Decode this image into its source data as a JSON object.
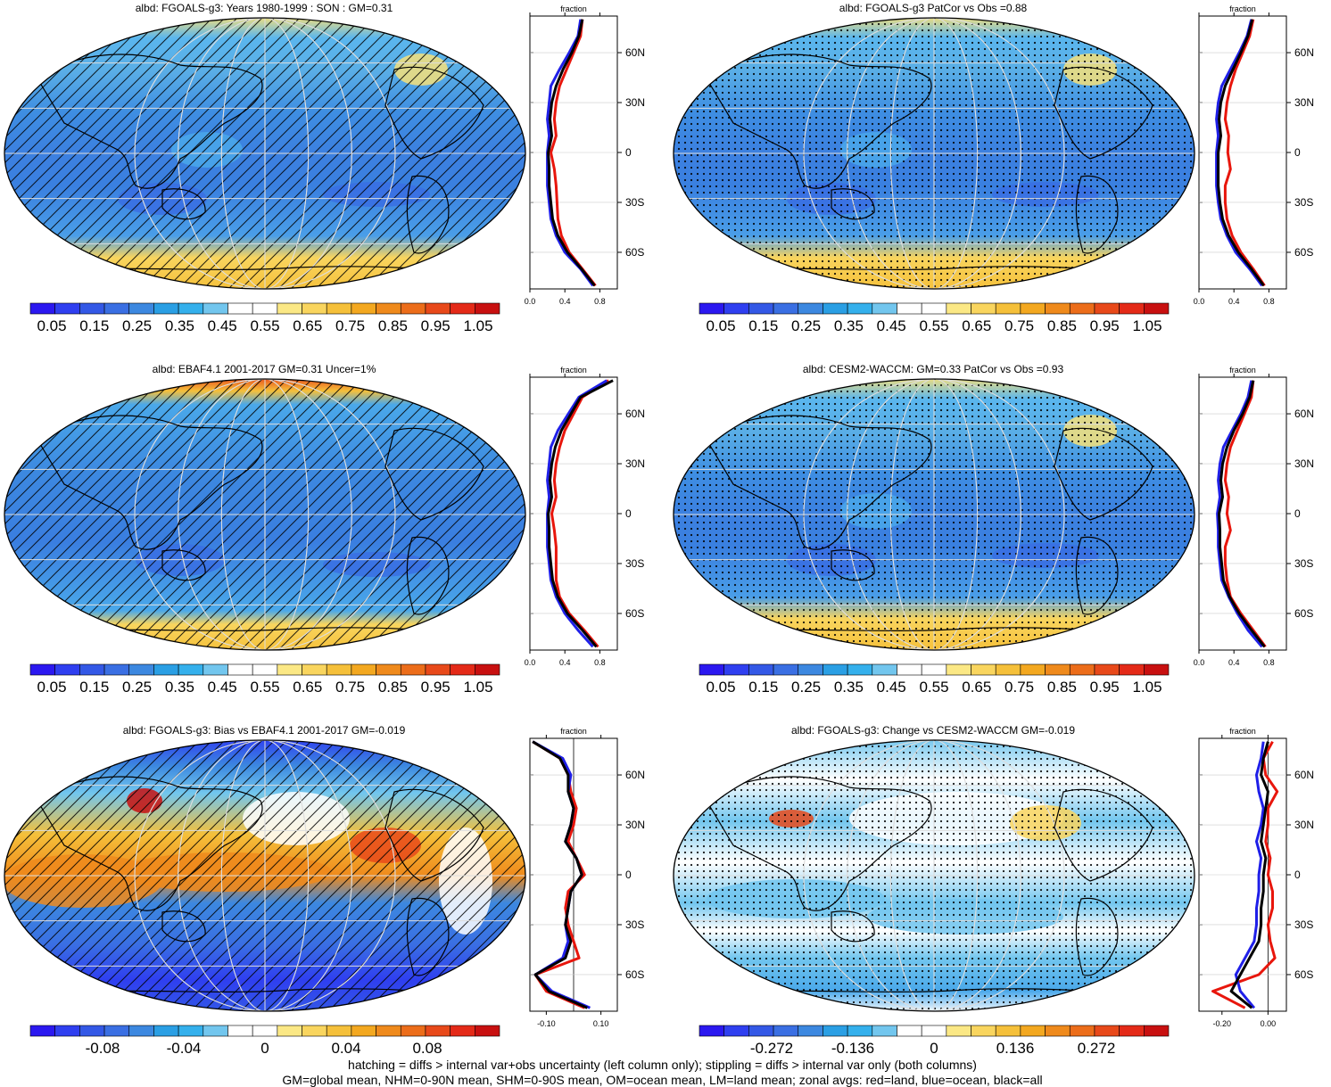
{
  "panels": [
    {
      "title": "albd: FGOALS-g3: Years 1980-1999 : SON : GM=0.31",
      "overlay": "hatch",
      "base": "clim",
      "colorbar": [
        "0.05",
        "0.15",
        "0.25",
        "0.35",
        "0.45",
        "0.55",
        "0.65",
        "0.75",
        "0.85",
        "0.95",
        "1.05"
      ]
    },
    {
      "title": "albd: FGOALS-g3 PatCor vs Obs =0.88",
      "overlay": "stipple",
      "base": "clim",
      "colorbar": [
        "0.05",
        "0.15",
        "0.25",
        "0.35",
        "0.45",
        "0.55",
        "0.65",
        "0.75",
        "0.85",
        "0.95",
        "1.05"
      ]
    },
    {
      "title": "albd: EBAF4.1 2001-2017 GM=0.31 Uncer=1%",
      "overlay": "hatch",
      "base": "obs",
      "colorbar": [
        "0.05",
        "0.15",
        "0.25",
        "0.35",
        "0.45",
        "0.55",
        "0.65",
        "0.75",
        "0.85",
        "0.95",
        "1.05"
      ]
    },
    {
      "title": "albd: CESM2-WACCM: GM=0.33 PatCor vs Obs =0.93",
      "overlay": "stipple",
      "base": "clim",
      "colorbar": [
        "0.05",
        "0.15",
        "0.25",
        "0.35",
        "0.45",
        "0.55",
        "0.65",
        "0.75",
        "0.85",
        "0.95",
        "1.05"
      ]
    },
    {
      "title": "albd: FGOALS-g3: Bias vs EBAF4.1 2001-2017  GM=-0.019",
      "overlay": "hatch",
      "base": "bias",
      "colorbar": [
        "-0.08",
        "-0.04",
        "0",
        "0.04",
        "0.08"
      ]
    },
    {
      "title": "albd: FGOALS-g3: Change vs CESM2-WACCM GM=-0.019",
      "overlay": "stipple",
      "base": "change",
      "colorbar": [
        "-0.272",
        "-0.136",
        "0",
        "0.136",
        "0.272"
      ]
    }
  ],
  "caption": {
    "line1": "hatching = diffs > internal var+obs uncertainty (left column only); stippling = diffs > internal var only (both columns)",
    "line2": "GM=global mean, NHM=0-90N mean, SHM=0-90S mean, OM=ocean mean, LM=land mean; zonal avgs: red=land, blue=ocean, black=all"
  },
  "colors": {
    "land": "#e8160c",
    "ocean": "#1f1fe8",
    "all": "#000000"
  },
  "palette": [
    "#2b18f0",
    "#2f3ff0",
    "#3358e6",
    "#3a6fe3",
    "#3c88e0",
    "#2a9fe4",
    "#34b0ec",
    "#72c6ee",
    "#ffffff",
    "#ffffff",
    "#fbe885",
    "#f9d55e",
    "#f5c03a",
    "#f3a820",
    "#ef8a1c",
    "#ec6d1a",
    "#e8491a",
    "#e42a18",
    "#c81010"
  ],
  "chart_data": [
    {
      "type": "heatmap",
      "title": "albd: FGOALS-g3: Years 1980-1999 : SON : GM=0.31",
      "colorbar_ticks": [
        0.05,
        0.15,
        0.25,
        0.35,
        0.45,
        0.55,
        0.65,
        0.75,
        0.85,
        0.95,
        1.05
      ],
      "zonal": {
        "xlabel": "fraction",
        "xticks": [
          "0.0",
          "0.4",
          "0.8"
        ],
        "xlim": [
          0,
          1
        ],
        "yticks": [
          "60N",
          "30N",
          "0",
          "30S",
          "60S"
        ],
        "lat": [
          80,
          70,
          60,
          50,
          40,
          30,
          20,
          10,
          0,
          -10,
          -20,
          -30,
          -40,
          -50,
          -60,
          -70,
          -80
        ],
        "series": [
          {
            "name": "land",
            "values": [
              0.6,
              0.58,
              0.5,
              0.42,
              0.34,
              0.3,
              0.28,
              0.3,
              0.24,
              0.28,
              0.3,
              0.31,
              0.32,
              0.36,
              0.45,
              0.6,
              0.75
            ]
          },
          {
            "name": "ocean",
            "values": [
              0.58,
              0.55,
              0.45,
              0.34,
              0.24,
              0.22,
              0.2,
              0.22,
              0.2,
              0.2,
              0.2,
              0.22,
              0.24,
              0.3,
              0.4,
              0.58,
              0.72
            ]
          },
          {
            "name": "all",
            "values": [
              0.6,
              0.56,
              0.48,
              0.38,
              0.3,
              0.25,
              0.23,
              0.25,
              0.21,
              0.22,
              0.22,
              0.24,
              0.26,
              0.32,
              0.43,
              0.59,
              0.74
            ]
          }
        ]
      }
    },
    {
      "type": "heatmap",
      "title": "albd: FGOALS-g3 PatCor vs Obs =0.88",
      "colorbar_ticks": [
        0.05,
        0.15,
        0.25,
        0.35,
        0.45,
        0.55,
        0.65,
        0.75,
        0.85,
        0.95,
        1.05
      ],
      "zonal": {
        "xlabel": "fraction",
        "xticks": [
          "0.0",
          "0.4",
          "0.8"
        ],
        "xlim": [
          0,
          1
        ],
        "yticks": [
          "60N",
          "30N",
          "0",
          "30S",
          "60S"
        ],
        "lat": [
          80,
          70,
          60,
          50,
          40,
          30,
          20,
          10,
          0,
          -10,
          -20,
          -30,
          -40,
          -50,
          -60,
          -70,
          -80
        ],
        "series": [
          {
            "name": "land",
            "values": [
              0.62,
              0.58,
              0.5,
              0.42,
              0.36,
              0.32,
              0.3,
              0.34,
              0.33,
              0.36,
              0.3,
              0.3,
              0.32,
              0.38,
              0.48,
              0.62,
              0.75
            ]
          },
          {
            "name": "ocean",
            "values": [
              0.6,
              0.55,
              0.46,
              0.36,
              0.26,
              0.22,
              0.2,
              0.22,
              0.2,
              0.2,
              0.2,
              0.22,
              0.25,
              0.32,
              0.42,
              0.58,
              0.72
            ]
          },
          {
            "name": "all",
            "values": [
              0.61,
              0.56,
              0.48,
              0.39,
              0.3,
              0.25,
              0.23,
              0.25,
              0.22,
              0.22,
              0.22,
              0.24,
              0.27,
              0.34,
              0.45,
              0.6,
              0.74
            ]
          }
        ]
      }
    },
    {
      "type": "heatmap",
      "title": "albd: EBAF4.1 2001-2017 GM=0.31 Uncer=1%",
      "colorbar_ticks": [
        0.05,
        0.15,
        0.25,
        0.35,
        0.45,
        0.55,
        0.65,
        0.75,
        0.85,
        0.95,
        1.05
      ],
      "zonal": {
        "xlabel": "fraction",
        "xticks": [
          "0.0",
          "0.4",
          "0.8"
        ],
        "xlim": [
          0,
          1
        ],
        "yticks": [
          "60N",
          "30N",
          "0",
          "30S",
          "60S"
        ],
        "lat": [
          80,
          70,
          60,
          50,
          40,
          30,
          20,
          10,
          0,
          -10,
          -20,
          -30,
          -40,
          -50,
          -60,
          -70,
          -80
        ],
        "series": [
          {
            "name": "land",
            "values": [
              0.9,
              0.6,
              0.5,
              0.4,
              0.34,
              0.3,
              0.28,
              0.3,
              0.25,
              0.28,
              0.3,
              0.3,
              0.3,
              0.34,
              0.45,
              0.62,
              0.78
            ]
          },
          {
            "name": "ocean",
            "values": [
              0.88,
              0.56,
              0.44,
              0.32,
              0.24,
              0.22,
              0.2,
              0.22,
              0.2,
              0.2,
              0.2,
              0.22,
              0.24,
              0.3,
              0.4,
              0.55,
              0.72
            ]
          },
          {
            "name": "all",
            "values": [
              0.95,
              0.58,
              0.47,
              0.36,
              0.29,
              0.25,
              0.23,
              0.25,
              0.21,
              0.22,
              0.22,
              0.24,
              0.26,
              0.32,
              0.43,
              0.6,
              0.76
            ]
          }
        ]
      }
    },
    {
      "type": "heatmap",
      "title": "albd: CESM2-WACCM: GM=0.33 PatCor vs Obs =0.93",
      "colorbar_ticks": [
        0.05,
        0.15,
        0.25,
        0.35,
        0.45,
        0.55,
        0.65,
        0.75,
        0.85,
        0.95,
        1.05
      ],
      "zonal": {
        "xlabel": "fraction",
        "xticks": [
          "0.0",
          "0.4",
          "0.8"
        ],
        "xlim": [
          0,
          1
        ],
        "yticks": [
          "60N",
          "30N",
          "0",
          "30S",
          "60S"
        ],
        "lat": [
          80,
          70,
          60,
          50,
          40,
          30,
          20,
          10,
          0,
          -10,
          -20,
          -30,
          -40,
          -50,
          -60,
          -70,
          -80
        ],
        "series": [
          {
            "name": "land",
            "values": [
              0.62,
              0.6,
              0.52,
              0.44,
              0.36,
              0.32,
              0.3,
              0.34,
              0.32,
              0.36,
              0.3,
              0.3,
              0.32,
              0.36,
              0.48,
              0.62,
              0.76
            ]
          },
          {
            "name": "ocean",
            "values": [
              0.6,
              0.56,
              0.48,
              0.38,
              0.28,
              0.24,
              0.22,
              0.24,
              0.21,
              0.22,
              0.22,
              0.24,
              0.26,
              0.34,
              0.44,
              0.56,
              0.72
            ]
          },
          {
            "name": "all",
            "values": [
              0.62,
              0.58,
              0.5,
              0.4,
              0.32,
              0.27,
              0.25,
              0.27,
              0.23,
              0.24,
              0.24,
              0.26,
              0.28,
              0.35,
              0.46,
              0.6,
              0.75
            ]
          }
        ]
      }
    },
    {
      "type": "heatmap",
      "title": "albd: FGOALS-g3: Bias vs EBAF4.1 2001-2017  GM=-0.019",
      "colorbar_ticks": [
        -0.08,
        -0.04,
        0,
        0.04,
        0.08
      ],
      "zonal": {
        "xlabel": "fraction",
        "xticks": [
          "-0.10",
          "0.10"
        ],
        "xlim": [
          -0.16,
          0.16
        ],
        "yticks": [
          "60N",
          "30N",
          "0",
          "30S",
          "60S"
        ],
        "lat": [
          80,
          70,
          60,
          50,
          40,
          30,
          20,
          10,
          0,
          -10,
          -20,
          -30,
          -40,
          -50,
          -60,
          -70,
          -80
        ],
        "series": [
          {
            "name": "land",
            "values": [
              -0.15,
              -0.05,
              -0.02,
              -0.01,
              0.01,
              0.0,
              -0.02,
              0.01,
              0.04,
              -0.02,
              -0.03,
              -0.02,
              0.0,
              0.02,
              -0.14,
              -0.1,
              0.04
            ]
          },
          {
            "name": "ocean",
            "values": [
              -0.15,
              -0.04,
              -0.01,
              -0.02,
              0.0,
              -0.01,
              -0.03,
              0.01,
              0.03,
              -0.01,
              -0.02,
              -0.03,
              -0.02,
              -0.04,
              -0.14,
              -0.08,
              0.06
            ]
          },
          {
            "name": "all",
            "values": [
              -0.15,
              -0.05,
              -0.02,
              -0.02,
              0.0,
              -0.01,
              -0.03,
              0.01,
              0.03,
              -0.01,
              -0.02,
              -0.03,
              -0.01,
              -0.03,
              -0.14,
              -0.09,
              0.05
            ]
          }
        ]
      }
    },
    {
      "type": "heatmap",
      "title": "albd: FGOALS-g3: Change vs CESM2-WACCM GM=-0.019",
      "colorbar_ticks": [
        -0.272,
        -0.136,
        0,
        0.136,
        0.272
      ],
      "zonal": {
        "xlabel": "fraction",
        "xticks": [
          "-0.20",
          "0.00"
        ],
        "xlim": [
          -0.3,
          0.08
        ],
        "yticks": [
          "60N",
          "30N",
          "0",
          "30S",
          "60S"
        ],
        "lat": [
          80,
          70,
          60,
          50,
          40,
          30,
          20,
          10,
          0,
          -10,
          -20,
          -30,
          -40,
          -50,
          -60,
          -70,
          -80
        ],
        "series": [
          {
            "name": "land",
            "values": [
              0.02,
              -0.02,
              -0.01,
              0.04,
              0.0,
              0.0,
              -0.01,
              0.01,
              0.0,
              0.02,
              0.02,
              0.0,
              0.01,
              0.03,
              -0.04,
              -0.24,
              -0.1
            ]
          },
          {
            "name": "ocean",
            "values": [
              -0.02,
              -0.03,
              -0.05,
              -0.04,
              -0.02,
              -0.03,
              -0.05,
              -0.03,
              -0.04,
              -0.04,
              -0.05,
              -0.05,
              -0.06,
              -0.1,
              -0.14,
              -0.12,
              -0.06
            ]
          },
          {
            "name": "all",
            "values": [
              0.0,
              -0.02,
              -0.03,
              0.0,
              -0.01,
              -0.02,
              -0.03,
              -0.01,
              -0.02,
              -0.02,
              -0.03,
              -0.03,
              -0.04,
              -0.08,
              -0.12,
              -0.16,
              -0.07
            ]
          }
        ]
      }
    }
  ]
}
